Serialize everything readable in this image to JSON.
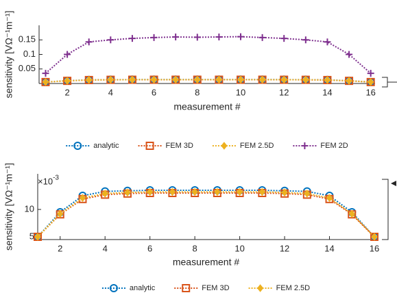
{
  "chart_data": [
    {
      "type": "line",
      "xlabel": "measurement #",
      "ylabel": "sensitivity [VΩ⁻¹m⁻¹]",
      "x": [
        1,
        2,
        3,
        4,
        5,
        6,
        7,
        8,
        9,
        10,
        11,
        12,
        13,
        14,
        15,
        16
      ],
      "xlim": [
        0.7,
        16.2
      ],
      "xticks": [
        2,
        4,
        6,
        8,
        10,
        12,
        14,
        16
      ],
      "ylim": [
        0,
        0.2
      ],
      "yticks": [
        0.05,
        0.1,
        0.15
      ],
      "series": [
        {
          "name": "analytic",
          "color": "#0072BD",
          "marker": "circle",
          "values": [
            0.005,
            0.0095,
            0.0125,
            0.0133,
            0.0134,
            0.0135,
            0.0135,
            0.0135,
            0.0135,
            0.0135,
            0.0135,
            0.0134,
            0.0133,
            0.0125,
            0.0095,
            0.005
          ]
        },
        {
          "name": "FEM 3D",
          "color": "#D95319",
          "marker": "square",
          "values": [
            0.005,
            0.0091,
            0.0119,
            0.0127,
            0.0129,
            0.013,
            0.013,
            0.013,
            0.013,
            0.013,
            0.013,
            0.0129,
            0.0127,
            0.0119,
            0.0091,
            0.005
          ]
        },
        {
          "name": "FEM 2.5D",
          "color": "#EDB120",
          "marker": "diamond",
          "values": [
            0.005,
            0.0092,
            0.0121,
            0.0129,
            0.0131,
            0.0132,
            0.0132,
            0.0132,
            0.0132,
            0.0132,
            0.0132,
            0.0131,
            0.0129,
            0.0121,
            0.0092,
            0.005
          ]
        },
        {
          "name": "FEM 2D",
          "color": "#7E2F8E",
          "marker": "plus",
          "values": [
            0.035,
            0.1,
            0.143,
            0.15,
            0.155,
            0.158,
            0.16,
            0.159,
            0.16,
            0.161,
            0.158,
            0.155,
            0.15,
            0.143,
            0.1,
            0.035
          ]
        }
      ]
    },
    {
      "type": "line",
      "xlabel": "measurement #",
      "ylabel": "sensitivity [VΩ⁻¹m⁻¹]",
      "y_scale_base": "×10",
      "y_scale_exponent": "-3",
      "x": [
        1,
        2,
        3,
        4,
        5,
        6,
        7,
        8,
        9,
        10,
        11,
        12,
        13,
        14,
        15,
        16
      ],
      "xlim": [
        1,
        16
      ],
      "xticks": [
        2,
        4,
        6,
        8,
        10,
        12,
        14,
        16
      ],
      "ylim": [
        4.5,
        16.5
      ],
      "yticks": [
        5,
        10
      ],
      "series": [
        {
          "name": "analytic",
          "color": "#0072BD",
          "marker": "circle",
          "values": [
            5.0,
            9.5,
            12.5,
            13.3,
            13.4,
            13.5,
            13.5,
            13.5,
            13.5,
            13.5,
            13.5,
            13.4,
            13.3,
            12.5,
            9.5,
            5.0
          ]
        },
        {
          "name": "FEM 3D",
          "color": "#D95319",
          "marker": "square",
          "values": [
            5.0,
            9.1,
            11.9,
            12.7,
            12.9,
            13.0,
            13.0,
            13.0,
            13.0,
            13.0,
            13.0,
            12.9,
            12.7,
            11.9,
            9.1,
            5.0
          ]
        },
        {
          "name": "FEM 2.5D",
          "color": "#EDB120",
          "marker": "diamond",
          "values": [
            5.0,
            9.2,
            12.1,
            12.9,
            13.1,
            13.2,
            13.2,
            13.2,
            13.2,
            13.2,
            13.2,
            13.1,
            12.9,
            12.1,
            9.2,
            5.0
          ]
        }
      ]
    }
  ]
}
